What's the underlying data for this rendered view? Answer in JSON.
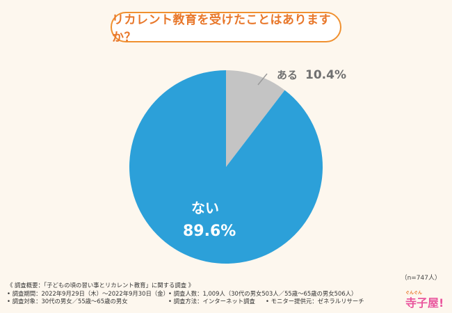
{
  "colors": {
    "accent": "#f0902f",
    "yes": "#c4c4c4",
    "no": "#2ca0d9",
    "label_gray": "#707070"
  },
  "header": {
    "title": "リカレント教育を受けたことはありますか？"
  },
  "chart_data": {
    "type": "pie",
    "title": "リカレント教育を受けたことはありますか？",
    "slices": [
      {
        "label": "ある",
        "value": 10.4,
        "value_label": "10.4%",
        "color": "#c4c4c4"
      },
      {
        "label": "ない",
        "value": 89.6,
        "value_label": "89.6%",
        "color": "#2ca0d9"
      }
    ],
    "n_label": "（n=747人）"
  },
  "footnotes": {
    "survey_overview": "《 調査概要：「子どもの頃の習い事とリカレント教育」に関する調査 》",
    "period": "• 調査期間：2022年9月29日（木）～2022年9月30日（金）",
    "respondents": "• 調査人数：1,009人（30代の男女503人／55歳～65歳の男女506人）",
    "target": "• 調査対象：30代の男女／55歳～65歳の男女",
    "method": "• 調査方法：インターネット調査",
    "monitor": "• モニター提供元：ゼネラルリサーチ"
  },
  "logo": {
    "small_text": "ぐんぐん",
    "main_text": "寺子屋!"
  }
}
